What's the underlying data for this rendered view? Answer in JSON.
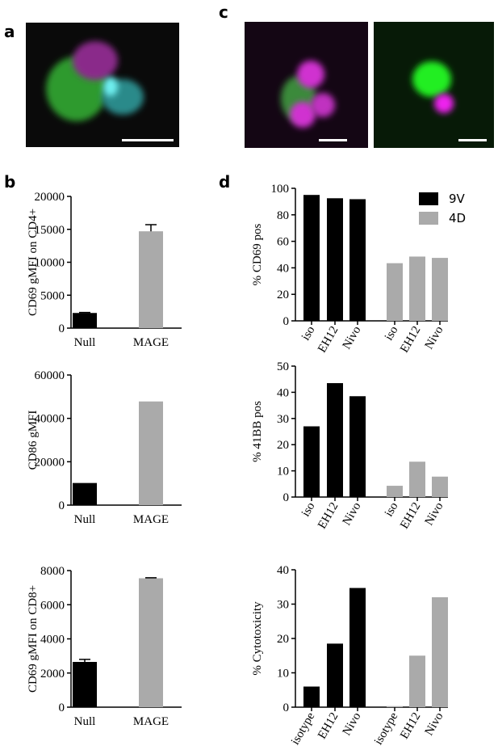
{
  "panel_labels": [
    "a",
    "b",
    "c",
    "d"
  ],
  "chart_data": [
    {
      "type": "bar",
      "ylabel": "CD69 gMFI on CD4+",
      "categories": [
        "Null",
        "MAGE"
      ],
      "values": [
        2300,
        14700
      ],
      "errors": [
        80,
        1000
      ],
      "colors": [
        "#000000",
        "#aaaaaa"
      ],
      "ylim": [
        0,
        20000
      ],
      "yticks": [
        0,
        5000,
        10000,
        15000,
        20000
      ]
    },
    {
      "type": "bar",
      "ylabel": "CD86 gMFI",
      "categories": [
        "Null",
        "MAGE"
      ],
      "values": [
        10200,
        47800
      ],
      "colors": [
        "#000000",
        "#aaaaaa"
      ],
      "ylim": [
        0,
        60000
      ],
      "yticks": [
        0,
        20000,
        40000,
        60000
      ]
    },
    {
      "type": "bar",
      "ylabel": "CD69 gMFI on CD8+",
      "categories": [
        "Null",
        "MAGE"
      ],
      "values": [
        2650,
        7550
      ],
      "errors": [
        150,
        30
      ],
      "colors": [
        "#000000",
        "#aaaaaa"
      ],
      "ylim": [
        0,
        8000
      ],
      "yticks": [
        0,
        2000,
        4000,
        6000,
        8000
      ]
    },
    {
      "type": "grouped_bar",
      "ylabel": "% CD69 pos",
      "categories": [
        "iso",
        "EH12",
        "Nivo"
      ],
      "series": [
        {
          "name": "9V",
          "color": "#000000",
          "values": [
            95,
            92.5,
            91.8
          ]
        },
        {
          "name": "4D",
          "color": "#aaaaaa",
          "values": [
            43.5,
            48.5,
            47.5
          ]
        }
      ],
      "ylim": [
        0,
        100
      ],
      "yticks": [
        0,
        20,
        40,
        60,
        80,
        100
      ],
      "legend": "upper right"
    },
    {
      "type": "grouped_bar",
      "ylabel": "% 41BB pos",
      "categories": [
        "iso",
        "EH12",
        "Nivo"
      ],
      "series": [
        {
          "color": "#000000",
          "values": [
            27,
            43.5,
            38.5
          ]
        },
        {
          "color": "#aaaaaa",
          "values": [
            4.3,
            13.5,
            7.8
          ]
        }
      ],
      "ylim": [
        0,
        50
      ],
      "yticks": [
        0,
        10,
        20,
        30,
        40,
        50
      ]
    },
    {
      "type": "grouped_bar",
      "ylabel": "% Cytotoxicity",
      "categories": [
        "isotype",
        "EH12",
        "Nivo"
      ],
      "series": [
        {
          "color": "#000000",
          "values": [
            6,
            18.5,
            34.7
          ]
        },
        {
          "color": "#aaaaaa",
          "values": [
            0.3,
            15,
            32
          ]
        }
      ],
      "ylim": [
        0,
        40
      ],
      "yticks": [
        0,
        10,
        20,
        30,
        40
      ]
    }
  ]
}
